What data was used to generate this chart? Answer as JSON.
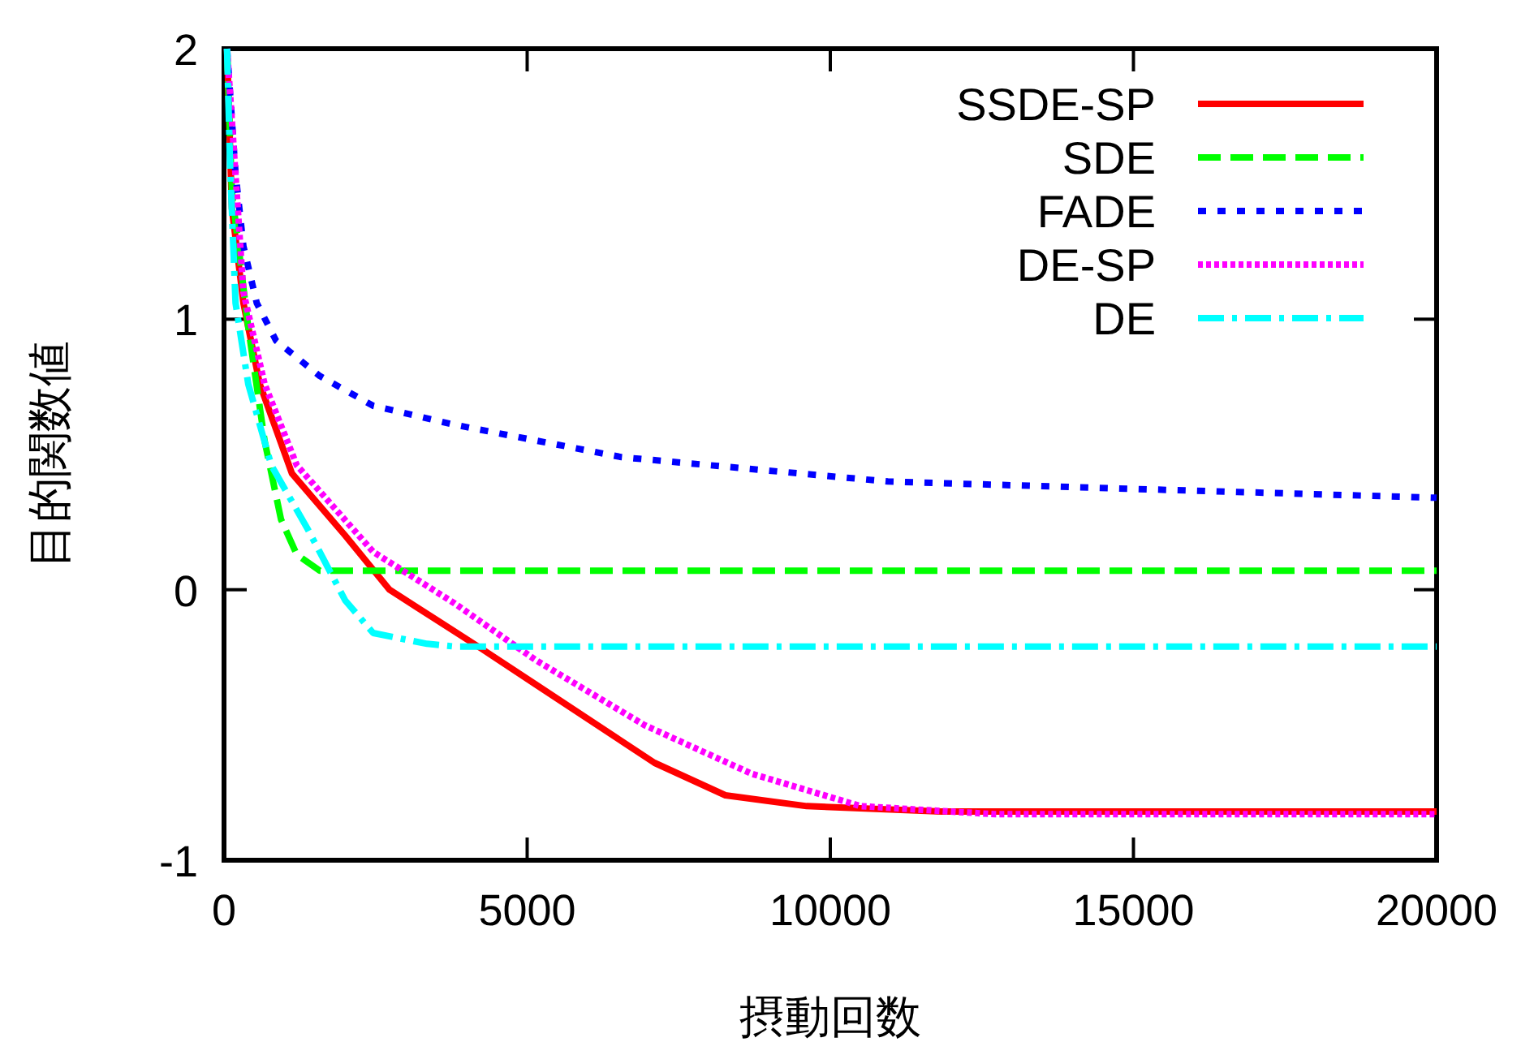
{
  "chart_data": {
    "type": "line",
    "xlabel": "摂動回数",
    "ylabel": "目的関数値",
    "xlim": [
      0,
      20000
    ],
    "xticks": [
      0,
      5000,
      10000,
      15000,
      20000
    ],
    "ylim": [
      -1,
      2
    ],
    "yticks": [
      -1,
      0,
      1,
      2
    ],
    "legend": "top right",
    "series": [
      {
        "name": "SSDE-SP",
        "color": "#ff0000",
        "line_style": "solid",
        "x": [
          50,
          130,
          320,
          590,
          1120,
          2000,
          2730,
          4260,
          5140,
          7100,
          8270,
          9610,
          11830,
          20000
        ],
        "values": [
          2.0,
          1.41,
          1.06,
          0.76,
          0.43,
          0.2,
          0.0,
          -0.22,
          -0.35,
          -0.64,
          -0.76,
          -0.8,
          -0.82,
          -0.82
        ]
      },
      {
        "name": "SDE",
        "color": "#00ff00",
        "line_style": "dashed",
        "x": [
          50,
          130,
          400,
          670,
          940,
          1200,
          1580,
          20000
        ],
        "values": [
          2.0,
          1.47,
          0.97,
          0.55,
          0.26,
          0.13,
          0.07,
          0.07
        ]
      },
      {
        "name": "FADE",
        "color": "#0000ff",
        "line_style": "dotted",
        "x": [
          50,
          190,
          320,
          540,
          860,
          1580,
          2460,
          3800,
          6560,
          10950,
          15400,
          20000
        ],
        "values": [
          2.0,
          1.54,
          1.27,
          1.06,
          0.92,
          0.79,
          0.68,
          0.61,
          0.49,
          0.4,
          0.37,
          0.34
        ]
      },
      {
        "name": "DE-SP",
        "color": "#ff00ff",
        "line_style": "finedotted",
        "x": [
          50,
          320,
          670,
          1200,
          2460,
          3800,
          5140,
          6930,
          8700,
          10500,
          12720,
          20000
        ],
        "values": [
          2.0,
          1.1,
          0.76,
          0.46,
          0.14,
          -0.05,
          -0.26,
          -0.5,
          -0.68,
          -0.8,
          -0.83,
          -0.83
        ]
      },
      {
        "name": "DE",
        "color": "#00ffff",
        "line_style": "dashdot",
        "x": [
          50,
          100,
          190,
          400,
          780,
          1390,
          2000,
          2460,
          3350,
          3800,
          20000
        ],
        "values": [
          2.0,
          1.57,
          1.06,
          0.76,
          0.46,
          0.22,
          -0.04,
          -0.16,
          -0.2,
          -0.21,
          -0.21
        ]
      }
    ]
  }
}
